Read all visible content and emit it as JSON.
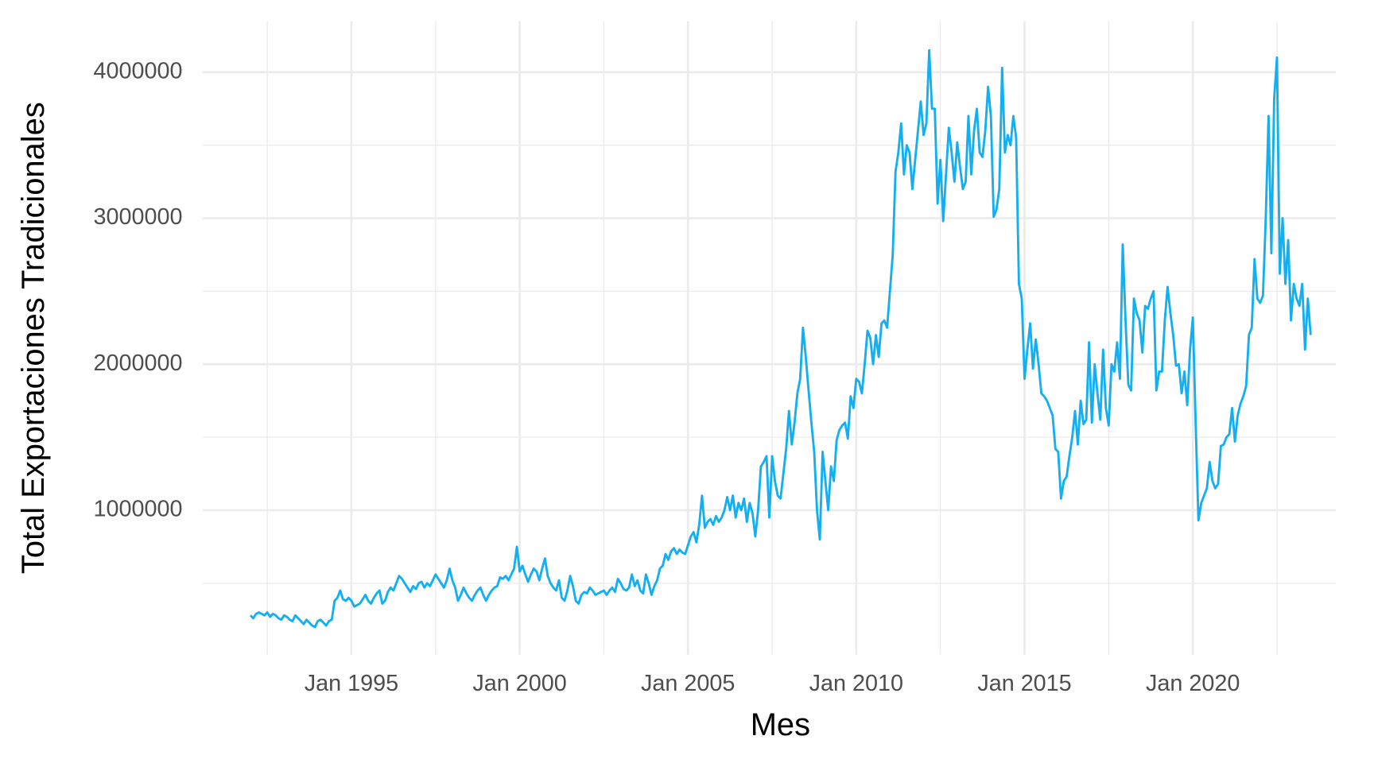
{
  "chart_data": {
    "type": "line",
    "x_label": "Mes",
    "y_label": "Total Exportaciones Tradicionales",
    "color": "#14aff0",
    "grid": true,
    "xlim": [
      "1990-08",
      "2024-04"
    ],
    "ylim": [
      10000,
      4350000
    ],
    "yticks": [
      1000000,
      2000000,
      3000000,
      4000000
    ],
    "xticks": [
      {
        "value": "1995-01",
        "label": "Jan 1995"
      },
      {
        "value": "2000-01",
        "label": "Jan 2000"
      },
      {
        "value": "2005-01",
        "label": "Jan 2005"
      },
      {
        "value": "2010-01",
        "label": "Jan 2010"
      },
      {
        "value": "2015-01",
        "label": "Jan 2015"
      },
      {
        "value": "2020-01",
        "label": "Jan 2020"
      }
    ],
    "x": [
      "1992-01",
      "1992-02",
      "1992-03",
      "1992-04",
      "1992-05",
      "1992-06",
      "1992-07",
      "1992-08",
      "1992-09",
      "1992-10",
      "1992-11",
      "1992-12",
      "1993-01",
      "1993-02",
      "1993-03",
      "1993-04",
      "1993-05",
      "1993-06",
      "1993-07",
      "1993-08",
      "1993-09",
      "1993-10",
      "1993-11",
      "1993-12",
      "1994-01",
      "1994-02",
      "1994-03",
      "1994-04",
      "1994-05",
      "1994-06",
      "1994-07",
      "1994-08",
      "1994-09",
      "1994-10",
      "1994-11",
      "1994-12",
      "1995-01",
      "1995-02",
      "1995-03",
      "1995-04",
      "1995-05",
      "1995-06",
      "1995-07",
      "1995-08",
      "1995-09",
      "1995-10",
      "1995-11",
      "1995-12",
      "1996-01",
      "1996-02",
      "1996-03",
      "1996-04",
      "1996-05",
      "1996-06",
      "1996-07",
      "1996-08",
      "1996-09",
      "1996-10",
      "1996-11",
      "1996-12",
      "1997-01",
      "1997-02",
      "1997-03",
      "1997-04",
      "1997-05",
      "1997-06",
      "1997-07",
      "1997-08",
      "1997-09",
      "1997-10",
      "1997-11",
      "1997-12",
      "1998-01",
      "1998-02",
      "1998-03",
      "1998-04",
      "1998-05",
      "1998-06",
      "1998-07",
      "1998-08",
      "1998-09",
      "1998-10",
      "1998-11",
      "1998-12",
      "1999-01",
      "1999-02",
      "1999-03",
      "1999-04",
      "1999-05",
      "1999-06",
      "1999-07",
      "1999-08",
      "1999-09",
      "1999-10",
      "1999-11",
      "1999-12",
      "2000-01",
      "2000-02",
      "2000-03",
      "2000-04",
      "2000-05",
      "2000-06",
      "2000-07",
      "2000-08",
      "2000-09",
      "2000-10",
      "2000-11",
      "2000-12",
      "2001-01",
      "2001-02",
      "2001-03",
      "2001-04",
      "2001-05",
      "2001-06",
      "2001-07",
      "2001-08",
      "2001-09",
      "2001-10",
      "2001-11",
      "2001-12",
      "2002-01",
      "2002-02",
      "2002-03",
      "2002-04",
      "2002-05",
      "2002-06",
      "2002-07",
      "2002-08",
      "2002-09",
      "2002-10",
      "2002-11",
      "2002-12",
      "2003-01",
      "2003-02",
      "2003-03",
      "2003-04",
      "2003-05",
      "2003-06",
      "2003-07",
      "2003-08",
      "2003-09",
      "2003-10",
      "2003-11",
      "2003-12",
      "2004-01",
      "2004-02",
      "2004-03",
      "2004-04",
      "2004-05",
      "2004-06",
      "2004-07",
      "2004-08",
      "2004-09",
      "2004-10",
      "2004-11",
      "2004-12",
      "2005-01",
      "2005-02",
      "2005-03",
      "2005-04",
      "2005-05",
      "2005-06",
      "2005-07",
      "2005-08",
      "2005-09",
      "2005-10",
      "2005-11",
      "2005-12",
      "2006-01",
      "2006-02",
      "2006-03",
      "2006-04",
      "2006-05",
      "2006-06",
      "2006-07",
      "2006-08",
      "2006-09",
      "2006-10",
      "2006-11",
      "2006-12",
      "2007-01",
      "2007-02",
      "2007-03",
      "2007-04",
      "2007-05",
      "2007-06",
      "2007-07",
      "2007-08",
      "2007-09",
      "2007-10",
      "2007-11",
      "2007-12",
      "2008-01",
      "2008-02",
      "2008-03",
      "2008-04",
      "2008-05",
      "2008-06",
      "2008-07",
      "2008-08",
      "2008-09",
      "2008-10",
      "2008-11",
      "2008-12",
      "2009-01",
      "2009-02",
      "2009-03",
      "2009-04",
      "2009-05",
      "2009-06",
      "2009-07",
      "2009-08",
      "2009-09",
      "2009-10",
      "2009-11",
      "2009-12",
      "2010-01",
      "2010-02",
      "2010-03",
      "2010-04",
      "2010-05",
      "2010-06",
      "2010-07",
      "2010-08",
      "2010-09",
      "2010-10",
      "2010-11",
      "2010-12",
      "2011-01",
      "2011-02",
      "2011-03",
      "2011-04",
      "2011-05",
      "2011-06",
      "2011-07",
      "2011-08",
      "2011-09",
      "2011-10",
      "2011-11",
      "2011-12",
      "2012-01",
      "2012-02",
      "2012-03",
      "2012-04",
      "2012-05",
      "2012-06",
      "2012-07",
      "2012-08",
      "2012-09",
      "2012-10",
      "2012-11",
      "2012-12",
      "2013-01",
      "2013-02",
      "2013-03",
      "2013-04",
      "2013-05",
      "2013-06",
      "2013-07",
      "2013-08",
      "2013-09",
      "2013-10",
      "2013-11",
      "2013-12",
      "2014-01",
      "2014-02",
      "2014-03",
      "2014-04",
      "2014-05",
      "2014-06",
      "2014-07",
      "2014-08",
      "2014-09",
      "2014-10",
      "2014-11",
      "2014-12",
      "2015-01",
      "2015-02",
      "2015-03",
      "2015-04",
      "2015-05",
      "2015-06",
      "2015-07",
      "2015-08",
      "2015-09",
      "2015-10",
      "2015-11",
      "2015-12",
      "2016-01",
      "2016-02",
      "2016-03",
      "2016-04",
      "2016-05",
      "2016-06",
      "2016-07",
      "2016-08",
      "2016-09",
      "2016-10",
      "2016-11",
      "2016-12",
      "2017-01",
      "2017-02",
      "2017-03",
      "2017-04",
      "2017-05",
      "2017-06",
      "2017-07",
      "2017-08",
      "2017-09",
      "2017-10",
      "2017-11",
      "2017-12",
      "2018-01",
      "2018-02",
      "2018-03",
      "2018-04",
      "2018-05",
      "2018-06",
      "2018-07",
      "2018-08",
      "2018-09",
      "2018-10",
      "2018-11",
      "2018-12",
      "2019-01",
      "2019-02",
      "2019-03",
      "2019-04",
      "2019-05",
      "2019-06",
      "2019-07",
      "2019-08",
      "2019-09",
      "2019-10",
      "2019-11",
      "2019-12",
      "2020-01",
      "2020-02",
      "2020-03",
      "2020-04",
      "2020-05",
      "2020-06",
      "2020-07",
      "2020-08",
      "2020-09",
      "2020-10",
      "2020-11",
      "2020-12",
      "2021-01",
      "2021-02",
      "2021-03",
      "2021-04",
      "2021-05",
      "2021-06",
      "2021-07",
      "2021-08",
      "2021-09",
      "2021-10",
      "2021-11",
      "2021-12",
      "2022-01",
      "2022-02",
      "2022-03",
      "2022-04",
      "2022-05",
      "2022-06",
      "2022-07",
      "2022-08",
      "2022-09",
      "2022-10",
      "2022-11",
      "2022-12",
      "2023-01",
      "2023-02",
      "2023-03",
      "2023-04",
      "2023-05",
      "2023-06",
      "2023-07"
    ],
    "values": [
      280000,
      260000,
      290000,
      300000,
      290000,
      280000,
      300000,
      270000,
      290000,
      280000,
      260000,
      250000,
      280000,
      270000,
      250000,
      240000,
      280000,
      260000,
      240000,
      220000,
      250000,
      230000,
      210000,
      200000,
      240000,
      250000,
      230000,
      210000,
      240000,
      250000,
      380000,
      400000,
      450000,
      390000,
      380000,
      400000,
      380000,
      340000,
      350000,
      360000,
      390000,
      420000,
      380000,
      360000,
      400000,
      430000,
      450000,
      360000,
      380000,
      440000,
      470000,
      450000,
      500000,
      550000,
      530000,
      500000,
      470000,
      440000,
      480000,
      460000,
      500000,
      510000,
      470000,
      500000,
      480000,
      520000,
      560000,
      530000,
      500000,
      470000,
      520000,
      600000,
      520000,
      470000,
      380000,
      420000,
      470000,
      430000,
      400000,
      380000,
      420000,
      450000,
      470000,
      420000,
      380000,
      420000,
      450000,
      470000,
      480000,
      540000,
      530000,
      550000,
      520000,
      560000,
      600000,
      750000,
      580000,
      620000,
      560000,
      510000,
      560000,
      600000,
      580000,
      520000,
      600000,
      670000,
      550000,
      500000,
      470000,
      450000,
      520000,
      400000,
      380000,
      450000,
      550000,
      480000,
      380000,
      360000,
      420000,
      440000,
      430000,
      470000,
      450000,
      420000,
      430000,
      440000,
      450000,
      420000,
      450000,
      470000,
      440000,
      530000,
      500000,
      460000,
      450000,
      470000,
      560000,
      480000,
      520000,
      450000,
      430000,
      560000,
      500000,
      420000,
      480000,
      520000,
      600000,
      620000,
      700000,
      660000,
      720000,
      740000,
      700000,
      730000,
      710000,
      700000,
      760000,
      820000,
      850000,
      780000,
      900000,
      1100000,
      880000,
      920000,
      940000,
      900000,
      960000,
      920000,
      950000,
      1000000,
      1090000,
      1000000,
      1100000,
      950000,
      1050000,
      1000000,
      1080000,
      920000,
      1050000,
      980000,
      820000,
      1000000,
      1300000,
      1330000,
      1370000,
      950000,
      1370000,
      1200000,
      1100000,
      1080000,
      1250000,
      1420000,
      1680000,
      1450000,
      1600000,
      1800000,
      1900000,
      2250000,
      2050000,
      1820000,
      1600000,
      1400000,
      1000000,
      800000,
      1400000,
      1200000,
      1000000,
      1300000,
      1200000,
      1480000,
      1550000,
      1580000,
      1600000,
      1490000,
      1780000,
      1700000,
      1900000,
      1880000,
      1800000,
      2000000,
      2230000,
      2180000,
      2000000,
      2200000,
      2050000,
      2280000,
      2300000,
      2250000,
      2500000,
      2750000,
      3320000,
      3450000,
      3650000,
      3300000,
      3500000,
      3450000,
      3200000,
      3400000,
      3600000,
      3800000,
      3570000,
      3650000,
      4150000,
      3750000,
      3750000,
      3100000,
      3400000,
      2980000,
      3300000,
      3620000,
      3450000,
      3250000,
      3520000,
      3350000,
      3200000,
      3250000,
      3700000,
      3300000,
      3600000,
      3750000,
      3450000,
      3420000,
      3600000,
      3900000,
      3700000,
      3010000,
      3060000,
      3200000,
      4030000,
      3450000,
      3570000,
      3500000,
      3700000,
      3550000,
      2550000,
      2450000,
      1900000,
      2100000,
      2280000,
      1970000,
      2170000,
      2000000,
      1800000,
      1780000,
      1750000,
      1700000,
      1650000,
      1420000,
      1400000,
      1080000,
      1200000,
      1230000,
      1370000,
      1500000,
      1680000,
      1450000,
      1750000,
      1590000,
      1620000,
      2150000,
      1600000,
      2000000,
      1800000,
      1620000,
      2100000,
      1700000,
      1580000,
      2000000,
      1950000,
      2150000,
      1900000,
      2820000,
      2300000,
      1860000,
      1820000,
      2450000,
      2350000,
      2300000,
      2080000,
      2400000,
      2380000,
      2450000,
      2500000,
      1820000,
      1950000,
      1950000,
      2300000,
      2530000,
      2350000,
      2200000,
      1990000,
      2000000,
      1800000,
      1950000,
      1720000,
      2100000,
      2320000,
      1600000,
      930000,
      1050000,
      1100000,
      1150000,
      1330000,
      1200000,
      1150000,
      1180000,
      1440000,
      1450000,
      1500000,
      1520000,
      1700000,
      1470000,
      1650000,
      1730000,
      1780000,
      1850000,
      2200000,
      2250000,
      2720000,
      2450000,
      2420000,
      2470000,
      3000000,
      3700000,
      2760000,
      3820000,
      4100000,
      2620000,
      3000000,
      2550000,
      2850000,
      2300000,
      2550000,
      2450000,
      2400000,
      2550000,
      2100000,
      2450000,
      2200000
    ]
  }
}
